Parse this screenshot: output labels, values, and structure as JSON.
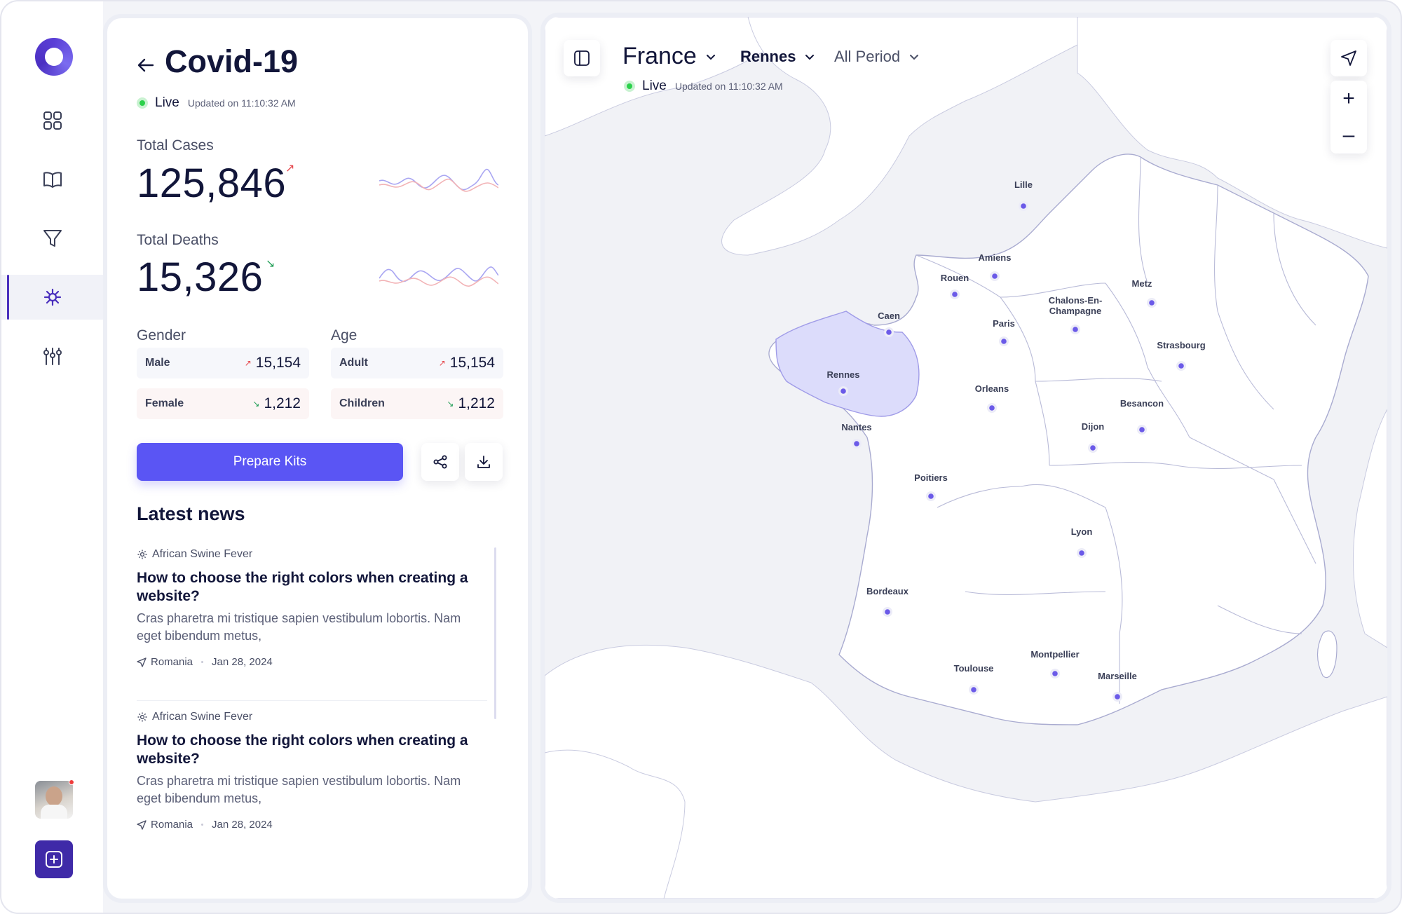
{
  "sidebar": {
    "items": [
      {
        "icon": "grid-icon",
        "active": false
      },
      {
        "icon": "book-icon",
        "active": false
      },
      {
        "icon": "filter-icon",
        "active": false
      },
      {
        "icon": "virus-icon",
        "active": true
      },
      {
        "icon": "adjust-icon",
        "active": false
      }
    ],
    "add_icon": "plus-square-icon"
  },
  "stats": {
    "title": "Covid-19",
    "live_label": "Live",
    "updated": "Updated on 11:10:32 AM",
    "total_cases_label": "Total Cases",
    "total_cases_value": "125,846",
    "total_cases_trend": "up",
    "total_deaths_label": "Total Deaths",
    "total_deaths_value": "15,326",
    "total_deaths_trend": "down",
    "gender_label": "Gender",
    "age_label": "Age",
    "gender": [
      {
        "label": "Male",
        "value": "15,154",
        "trend": "up"
      },
      {
        "label": "Female",
        "value": "1,212",
        "trend": "down"
      }
    ],
    "age": [
      {
        "label": "Adult",
        "value": "15,154",
        "trend": "up"
      },
      {
        "label": "Children",
        "value": "1,212",
        "trend": "down"
      }
    ],
    "primary_button": "Prepare Kits"
  },
  "news": {
    "heading": "Latest news",
    "items": [
      {
        "category": "African Swine Fever",
        "headline": "How to choose the right colors when creating a website?",
        "body": "Cras pharetra mi tristique sapien vestibulum lobortis. Nam eget bibendum metus,",
        "location": "Romania",
        "date": "Jan 28, 2024"
      },
      {
        "category": "African Swine Fever",
        "headline": "How to choose the right colors when creating a website?",
        "body": "Cras pharetra mi tristique sapien vestibulum lobortis. Nam eget bibendum metus,",
        "location": "Romania",
        "date": "Jan 28, 2024"
      }
    ]
  },
  "map": {
    "country": "France",
    "city": "Rennes",
    "period": "All Period",
    "live_label": "Live",
    "updated": "Updated on 11:10:32 AM",
    "zoom_in": "+",
    "zoom_out": "–",
    "selected_region": "Rennes",
    "cities": [
      "Lille",
      "Amiens",
      "Rouen",
      "Metz",
      "Caen",
      "Paris",
      "Chalons-En-Champagne",
      "Strasbourg",
      "Rennes",
      "Orleans",
      "Besancon",
      "Nantes",
      "Dijon",
      "Poitiers",
      "Lyon",
      "Bordeaux",
      "Montpellier",
      "Toulouse",
      "Marseille"
    ]
  },
  "colors": {
    "accent": "#5a55f4",
    "brand_dark": "#3f2aa8",
    "live": "#2bd14b",
    "trend_up": "#e5484d",
    "trend_down": "#1f9d55",
    "map_highlight": "#dcdcfb",
    "city_marker": "#6b5ae8"
  }
}
